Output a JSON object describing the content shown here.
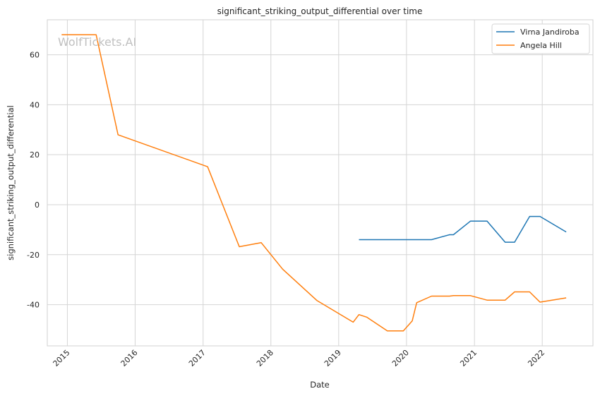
{
  "chart_data": {
    "type": "line",
    "title": "significant_striking_output_differential over time",
    "xlabel": "Date",
    "ylabel": "significant_striking_output_differential",
    "watermark": "WolfTickets.AI",
    "x_ticks": [
      "2015",
      "2016",
      "2017",
      "2018",
      "2019",
      "2020",
      "2021",
      "2022"
    ],
    "y_ticks": [
      60,
      40,
      20,
      0,
      -20,
      -40
    ],
    "xlim": [
      "2014-09-15",
      "2022-10-01"
    ],
    "ylim": [
      -56.5,
      74
    ],
    "grid": true,
    "legend_position": "top-right",
    "series": [
      {
        "name": "Virna Jandiroba",
        "color": "#1f77b4",
        "points": [
          [
            "2019-04-20",
            -14
          ],
          [
            "2020-05-15",
            -14
          ],
          [
            "2020-08-20",
            -12
          ],
          [
            "2020-09-10",
            -12
          ],
          [
            "2020-12-10",
            -6.6
          ],
          [
            "2021-03-10",
            -6.6
          ],
          [
            "2021-06-15",
            -15
          ],
          [
            "2021-08-05",
            -15
          ],
          [
            "2021-10-25",
            -4.7
          ],
          [
            "2021-12-20",
            -4.7
          ],
          [
            "2022-05-10",
            -10.9
          ]
        ]
      },
      {
        "name": "Angela Hill",
        "color": "#ff7f0e",
        "points": [
          [
            "2014-12-01",
            68
          ],
          [
            "2015-06-05",
            68
          ],
          [
            "2015-10-01",
            28
          ],
          [
            "2017-01-25",
            15.2
          ],
          [
            "2017-07-15",
            -16.8
          ],
          [
            "2017-11-10",
            -15.2
          ],
          [
            "2018-03-05",
            -25.8
          ],
          [
            "2018-09-05",
            -38.3
          ],
          [
            "2019-03-20",
            -47
          ],
          [
            "2019-04-20",
            -44
          ],
          [
            "2019-06-01",
            -45
          ],
          [
            "2019-09-20",
            -50.5
          ],
          [
            "2019-12-15",
            -50.5
          ],
          [
            "2020-02-01",
            -46.5
          ],
          [
            "2020-02-25",
            -39.2
          ],
          [
            "2020-05-15",
            -36.6
          ],
          [
            "2020-08-20",
            -36.6
          ],
          [
            "2020-09-10",
            -36.4
          ],
          [
            "2020-12-10",
            -36.4
          ],
          [
            "2021-03-10",
            -38.2
          ],
          [
            "2021-06-15",
            -38.2
          ],
          [
            "2021-08-05",
            -34.9
          ],
          [
            "2021-10-25",
            -34.9
          ],
          [
            "2021-12-20",
            -39
          ],
          [
            "2022-05-10",
            -37.3
          ]
        ]
      }
    ]
  }
}
